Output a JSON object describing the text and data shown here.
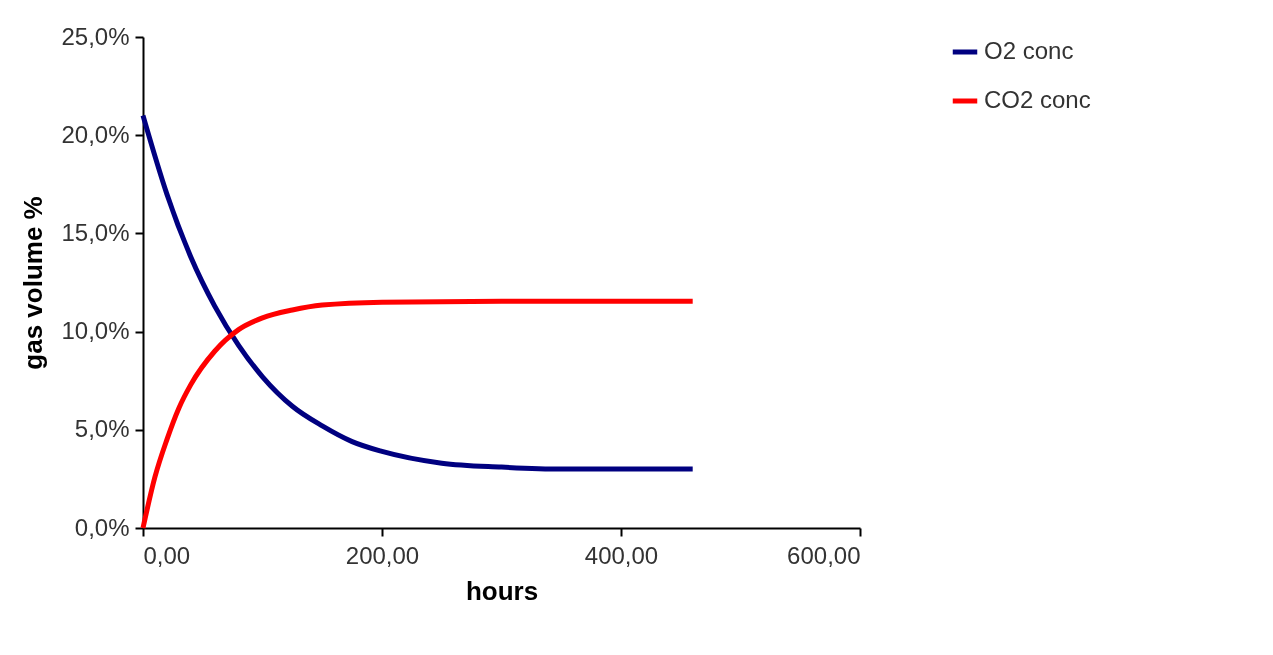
{
  "chart_data": {
    "type": "line",
    "xlabel": "hours",
    "ylabel": "gas volume %",
    "xlim": [
      0,
      600
    ],
    "xticks": [
      {
        "value": 0,
        "label": "0,00"
      },
      {
        "value": 200,
        "label": "200,00"
      },
      {
        "value": 400,
        "label": "400,00"
      },
      {
        "value": 600,
        "label": "600,00"
      }
    ],
    "ylim": [
      0,
      25
    ],
    "yticks": [
      {
        "value": 0,
        "label": "0,0%"
      },
      {
        "value": 5,
        "label": "5,0%"
      },
      {
        "value": 10,
        "label": "10,0%"
      },
      {
        "value": 15,
        "label": "15,0%"
      },
      {
        "value": 20,
        "label": "20,0%"
      },
      {
        "value": 25,
        "label": "25,0%"
      }
    ],
    "grid": false,
    "legend": "right",
    "marker": "none",
    "line_style": "solid",
    "series": [
      {
        "name": "O2 conc",
        "color": "#000080",
        "x": [
          0,
          20,
          40,
          60,
          80,
          100,
          125,
          150,
          175,
          200,
          250,
          300,
          350,
          400,
          460
        ],
        "values": [
          21,
          17.0,
          13.8,
          11.3,
          9.3,
          7.7,
          6.2,
          5.2,
          4.4,
          3.9,
          3.3,
          3.1,
          3.0,
          3.0,
          3.0
        ]
      },
      {
        "name": "CO2 conc",
        "color": "#ff0000",
        "x": [
          0,
          10,
          20,
          30,
          40,
          60,
          80,
          100,
          125,
          150,
          200,
          300,
          460
        ],
        "values": [
          0,
          2.6,
          4.5,
          6.1,
          7.3,
          9.0,
          10.1,
          10.7,
          11.1,
          11.35,
          11.5,
          11.55,
          11.55
        ]
      }
    ]
  }
}
